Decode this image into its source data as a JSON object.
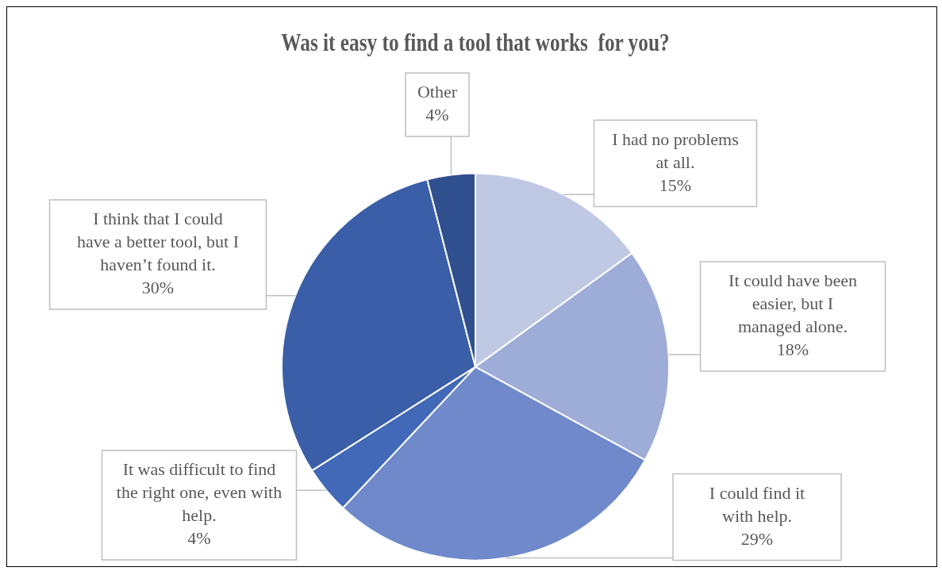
{
  "chart_data": {
    "type": "pie",
    "title": "Was it easy to find a tool that works  for you?",
    "categories": [
      "I had no problems at all.",
      "It could have been easier, but I managed alone.",
      "I could find it with help.",
      "It was difficult to find the right one, even with help.",
      "I think that I could have a better tool, but I haven’t found it.",
      "Other"
    ],
    "values": [
      15,
      18,
      29,
      4,
      30,
      4
    ],
    "colors": [
      "#c0c9e4",
      "#9eacd8",
      "#6f89cb",
      "#4169b8",
      "#3a5fa8",
      "#2f4f8e"
    ],
    "value_labels": [
      "15%",
      "18%",
      "29%",
      "4%",
      "30%",
      "4%"
    ]
  }
}
